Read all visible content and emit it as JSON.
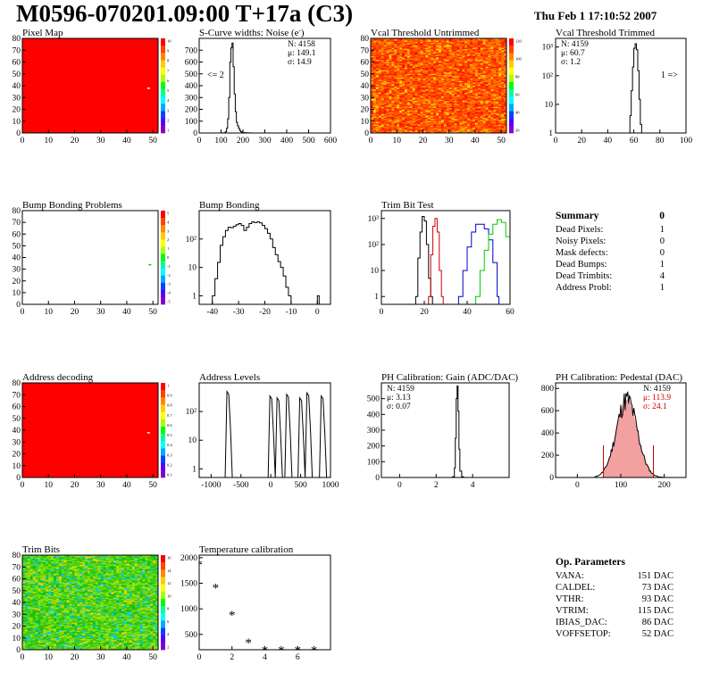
{
  "header": {
    "title": "M0596-070201.09:00 T+17a (C3)",
    "date": "Thu Feb  1 17:10:52 2007"
  },
  "colors": {
    "red_map": "#ff0000",
    "trim_red": "#cc0000",
    "trim_blue": "#0000cc",
    "trim_green": "#00cc00",
    "fit_red": "#cc0000"
  },
  "summary": {
    "title": "Summary",
    "total": "0",
    "rows": [
      {
        "label": "Dead Pixels:",
        "value": "1"
      },
      {
        "label": "Noisy Pixels:",
        "value": "0"
      },
      {
        "label": "Mask defects:",
        "value": "0"
      },
      {
        "label": "Dead Bumps:",
        "value": "1"
      },
      {
        "label": "Dead Trimbits:",
        "value": "4"
      },
      {
        "label": "Address Probl:",
        "value": "1"
      }
    ]
  },
  "op_params": {
    "title": "Op. Parameters",
    "rows": [
      {
        "label": "VANA:",
        "value": "151 DAC"
      },
      {
        "label": "CALDEL:",
        "value": "73 DAC"
      },
      {
        "label": "VTHR:",
        "value": "93 DAC"
      },
      {
        "label": "VTRIM:",
        "value": "115 DAC"
      },
      {
        "label": "IBIAS_DAC:",
        "value": "86 DAC"
      },
      {
        "label": "VOFFSETOP:",
        "value": "52 DAC"
      }
    ]
  },
  "chart_data": [
    {
      "id": "pixel_map",
      "type": "heatmap",
      "title": "Pixel Map",
      "xlim": [
        0,
        52
      ],
      "ylim": [
        0,
        80
      ],
      "xticks": [
        0,
        10,
        20,
        30,
        40,
        50
      ],
      "yticks": [
        0,
        10,
        20,
        30,
        40,
        50,
        60,
        70,
        80
      ],
      "fill": "uniform",
      "fill_color": "#ff0000",
      "palette_ticks": [
        "10",
        "9",
        "8",
        "7",
        "6",
        "5",
        "4",
        "3",
        "2",
        "1"
      ]
    },
    {
      "id": "scurve",
      "type": "line",
      "title": "S-Curve widths: Noise (e",
      "title_sup": "-",
      "title_end": ")",
      "xlim": [
        0,
        600
      ],
      "ylim": [
        0,
        800
      ],
      "xticks": [
        0,
        100,
        200,
        300,
        400,
        500,
        600
      ],
      "yticks": [
        0,
        100,
        200,
        300,
        400,
        500,
        600,
        700
      ],
      "stats": [
        "N: 4158",
        "μ: 149.1",
        "σ: 14.9"
      ],
      "annotation": "<= 2",
      "x": [
        100,
        110,
        120,
        125,
        130,
        135,
        140,
        145,
        150,
        155,
        160,
        165,
        170,
        175,
        180,
        185,
        190,
        195,
        200,
        210,
        220,
        240
      ],
      "y": [
        0,
        2,
        10,
        40,
        120,
        300,
        600,
        720,
        760,
        560,
        330,
        180,
        90,
        60,
        40,
        20,
        10,
        5,
        3,
        2,
        1,
        0
      ]
    },
    {
      "id": "vcal_untrimmed",
      "type": "heatmap",
      "title": "Vcal Threshold Untrimmed",
      "xlim": [
        0,
        52
      ],
      "ylim": [
        0,
        80
      ],
      "xticks": [
        0,
        10,
        20,
        30,
        40,
        50
      ],
      "yticks": [
        0,
        10,
        20,
        30,
        40,
        50,
        60,
        70,
        80
      ],
      "fill": "random_warm",
      "palette_ticks": [
        "120",
        "100",
        "80",
        "60",
        "40",
        "20"
      ]
    },
    {
      "id": "vcal_trimmed",
      "type": "line",
      "title": "Vcal Threshold Trimmed",
      "log": true,
      "xlim": [
        0,
        100
      ],
      "ylim": [
        1,
        2000
      ],
      "xticks": [
        0,
        20,
        40,
        60,
        80,
        100
      ],
      "yticks": [
        "1",
        "10",
        "10²",
        "10³"
      ],
      "stats": [
        "N: 4159",
        "μ: 60.7",
        "σ: 1.2"
      ],
      "annotation": "1 =>",
      "x": [
        56,
        57,
        58,
        59,
        60,
        61,
        62,
        63,
        64,
        65,
        66
      ],
      "y": [
        1,
        4,
        30,
        200,
        900,
        1300,
        800,
        150,
        15,
        2,
        1
      ]
    },
    {
      "id": "bump_problems",
      "type": "heatmap",
      "title": "Bump Bonding Problems",
      "xlim": [
        0,
        52
      ],
      "ylim": [
        0,
        80
      ],
      "xticks": [
        0,
        10,
        20,
        30,
        40,
        50
      ],
      "yticks": [
        0,
        10,
        20,
        30,
        40,
        50,
        60,
        70,
        80
      ],
      "fill": "empty",
      "palette_ticks": [
        "5",
        "4",
        "3",
        "2",
        "1",
        "0",
        "-1",
        "-2",
        "-3",
        "-4",
        "-5"
      ]
    },
    {
      "id": "bump_bonding",
      "type": "line",
      "title": "Bump Bonding",
      "log": true,
      "xlim": [
        -45,
        5
      ],
      "ylim": [
        0.5,
        1000
      ],
      "xticks": [
        -40,
        -30,
        -20,
        -10,
        0
      ],
      "yticks": [
        "1",
        "10",
        "10²"
      ],
      "x": [
        -40,
        -39,
        -38,
        -37,
        -36,
        -35,
        -34,
        -33,
        -32,
        -31,
        -30,
        -29,
        -28,
        -27,
        -26,
        -25,
        -24,
        -23,
        -22,
        -21,
        -20,
        -19,
        -18,
        -17,
        -16,
        -15,
        -14,
        -13,
        -12,
        -11,
        -10,
        -9,
        0
      ],
      "y": [
        1,
        4,
        15,
        60,
        120,
        200,
        260,
        250,
        280,
        320,
        350,
        300,
        200,
        260,
        350,
        400,
        380,
        400,
        370,
        300,
        230,
        160,
        100,
        50,
        28,
        16,
        10,
        5,
        2,
        1,
        0.5,
        0.5,
        1
      ]
    },
    {
      "id": "trim_bit_test",
      "type": "line",
      "title": "Trim Bit Test",
      "log": true,
      "xlim": [
        0,
        60
      ],
      "ylim": [
        0.5,
        2000
      ],
      "xticks": [
        0,
        20,
        40,
        60
      ],
      "yticks": [
        "1",
        "10",
        "10²",
        "10³"
      ],
      "series": [
        {
          "color": "#000000",
          "x": [
            16,
            17,
            18,
            19,
            20,
            21,
            22,
            23
          ],
          "y": [
            1,
            30,
            300,
            1200,
            800,
            100,
            5,
            1
          ]
        },
        {
          "color": "#cc0000",
          "x": [
            22,
            23,
            24,
            25,
            26,
            27,
            28
          ],
          "y": [
            1,
            40,
            500,
            1000,
            300,
            10,
            1
          ]
        },
        {
          "color": "#0000cc",
          "x": [
            36,
            38,
            40,
            42,
            44,
            46,
            48,
            50,
            52,
            54
          ],
          "y": [
            1,
            10,
            80,
            300,
            600,
            600,
            400,
            150,
            20,
            1
          ]
        },
        {
          "color": "#00cc00",
          "x": [
            44,
            46,
            48,
            50,
            52,
            54,
            56,
            58,
            60
          ],
          "y": [
            1,
            10,
            60,
            250,
            600,
            900,
            700,
            200,
            1
          ]
        }
      ]
    },
    {
      "id": "address_decoding",
      "type": "heatmap",
      "title": "Address decoding",
      "xlim": [
        0,
        52
      ],
      "ylim": [
        0,
        80
      ],
      "xticks": [
        0,
        10,
        20,
        30,
        40,
        50
      ],
      "yticks": [
        0,
        10,
        20,
        30,
        40,
        50,
        60,
        70,
        80
      ],
      "fill": "uniform",
      "fill_color": "#ff0000",
      "palette_ticks": [
        "1",
        "0.9",
        "0.8",
        "0.7",
        "0.6",
        "0.5",
        "0.4",
        "0.3",
        "0.2",
        "0.1"
      ]
    },
    {
      "id": "address_levels",
      "type": "line",
      "title": "Address Levels",
      "log": true,
      "xlim": [
        -1200,
        1000
      ],
      "ylim": [
        0.5,
        1000
      ],
      "xticks": [
        -1000,
        -500,
        0,
        500,
        1000
      ],
      "yticks": [
        "1",
        "10",
        "10²"
      ],
      "peaks": [
        [
          -720,
          500
        ],
        [
          0,
          350
        ],
        [
          120,
          300
        ],
        [
          280,
          400
        ],
        [
          500,
          300
        ],
        [
          620,
          450
        ],
        [
          860,
          350
        ]
      ]
    },
    {
      "id": "ph_gain",
      "type": "line",
      "title": "PH Calibration: Gain (ADC/DAC)",
      "xlim": [
        -1,
        6
      ],
      "ylim": [
        0,
        600
      ],
      "xticks": [
        0,
        2,
        4
      ],
      "yticks": [
        0,
        100,
        200,
        300,
        400,
        500
      ],
      "stats": [
        "N: 4159",
        "μ: 3.13",
        "σ: 0.07"
      ],
      "x": [
        2.8,
        2.9,
        3.0,
        3.05,
        3.1,
        3.15,
        3.2,
        3.25,
        3.3,
        3.4,
        3.5
      ],
      "y": [
        0,
        5,
        60,
        250,
        500,
        580,
        420,
        180,
        40,
        5,
        0
      ]
    },
    {
      "id": "ph_pedestal",
      "type": "line",
      "title": "PH Calibration: Pedestal (DAC)",
      "xlim": [
        -50,
        250
      ],
      "ylim": [
        0,
        850
      ],
      "xticks": [
        0,
        100,
        200
      ],
      "yticks": [
        0,
        200,
        400,
        600,
        800
      ],
      "stats": [
        "N: 4159",
        "μ: 113.9",
        "σ: 24.1"
      ],
      "fit_mean": 113.9,
      "fit_sigma": 24.1,
      "fit_peak": 700,
      "cut_lines": [
        60,
        175
      ]
    },
    {
      "id": "trim_bits",
      "type": "heatmap",
      "title": "Trim Bits",
      "xlim": [
        0,
        52
      ],
      "ylim": [
        0,
        80
      ],
      "xticks": [
        0,
        10,
        20,
        30,
        40,
        50
      ],
      "yticks": [
        0,
        10,
        20,
        30,
        40,
        50,
        60,
        70,
        80
      ],
      "fill": "random_green",
      "palette_ticks": [
        "16",
        "14",
        "12",
        "10",
        "8",
        "6",
        "4",
        "2"
      ]
    },
    {
      "id": "temperature",
      "type": "scatter",
      "title": "Temperature calibration",
      "xlim": [
        0,
        8
      ],
      "ylim": [
        200,
        2050
      ],
      "xticks": [
        0,
        2,
        4,
        6
      ],
      "yticks": [
        500,
        1000,
        1500,
        2000
      ],
      "x": [
        0,
        1,
        2,
        3,
        4,
        5,
        6,
        7
      ],
      "y": [
        1880,
        1430,
        900,
        360,
        210,
        210,
        210,
        210
      ]
    }
  ]
}
